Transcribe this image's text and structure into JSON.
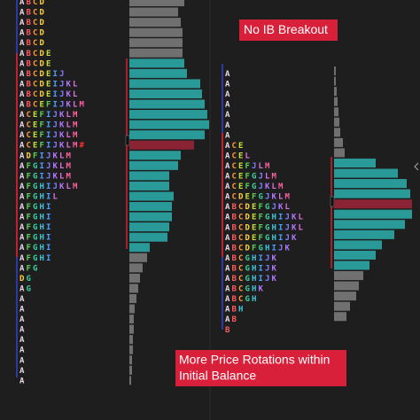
{
  "letter_colors": {
    "A": "#e8d8e8",
    "B": "#ff5a5a",
    "C": "#ff9a3c",
    "D": "#ffd23c",
    "E": "#c8e03c",
    "F": "#5ad25a",
    "G": "#3cd2a0",
    "H": "#3cc8e0",
    "I": "#4aa0ff",
    "J": "#8080ff",
    "K": "#b478ff",
    "L": "#e070e0",
    "M": "#ff60a0",
    "#": "#ff3030"
  },
  "profiles": [
    {
      "rows": [
        "ABCD",
        "ABCD",
        "ABCD",
        "ABCD",
        "ABCD",
        "ABCDE",
        "ABCDE",
        "ABCDEIJ",
        "ABCDEIJKL",
        "ABCDEIJKL",
        "ABCEFIJKLM",
        "ACEFIJKLM",
        "ACEFIJKLM",
        "ACEFIJKLM",
        "ACEFIJKLM#",
        "ADFIJKLM",
        "AFGIJKLM",
        "AFGIJKLM",
        "AFGHIJKLM",
        "AFGHIL",
        "AFGHI",
        "AFGHI",
        "AFGHI",
        "AFGHI",
        "AFGHI",
        "AFGHI",
        "AFG",
        "DG",
        "AG",
        "A",
        "A",
        "A",
        "A",
        "A",
        "A",
        "A",
        "A",
        "A"
      ],
      "bars": [
        {
          "color": "#707070",
          "values": [
            62,
            55,
            58,
            60,
            60,
            60
          ]
        },
        {
          "color": "#2a9a98",
          "values": [
            62,
            65,
            80,
            82,
            85,
            88,
            90,
            85
          ]
        },
        {
          "color": "#8a2434",
          "values": [
            73
          ]
        },
        {
          "color": "#2a9a98",
          "values": [
            58,
            55,
            45,
            45,
            50,
            48,
            48,
            45,
            43,
            23
          ]
        },
        {
          "color": "#707070",
          "values": [
            20,
            15,
            12,
            10,
            8,
            6,
            5,
            5,
            4,
            4,
            3,
            3,
            2
          ]
        }
      ]
    },
    {
      "rows": [
        "A",
        "A",
        "A",
        "A",
        "A",
        "A",
        "A",
        "ACE",
        "ACEL",
        "ACEFJLM",
        "ACEFGJLM",
        "ACEFGJKLM",
        "ACDEFGJKLM",
        "ABCDEFGJKL",
        "ABCDEFGHIJKL",
        "ABCDEFGHIJKL",
        "ABCDEFGHIJK",
        "ABCDFGHIJK",
        "ABCGHIJK",
        "ABCGHIJK",
        "ABCGHIJK",
        "ABCGHK",
        "ABCGH",
        "ABH",
        "AB",
        "B"
      ],
      "bars": [
        {
          "color": "#707070",
          "values": [
            2,
            2,
            3,
            4,
            5,
            6,
            7,
            10,
            12
          ]
        },
        {
          "color": "#2a9a98",
          "values": [
            47,
            72,
            82,
            86
          ]
        },
        {
          "color": "#8a2434",
          "values": [
            88
          ]
        },
        {
          "color": "#2a9a98",
          "values": [
            88,
            80,
            68,
            54,
            47,
            40
          ]
        },
        {
          "color": "#707070",
          "values": [
            33,
            28,
            25,
            18,
            14
          ]
        }
      ]
    }
  ],
  "annotations": [
    "No IB Breakout",
    "More Price Rotations within",
    "Initial Balance"
  ]
}
